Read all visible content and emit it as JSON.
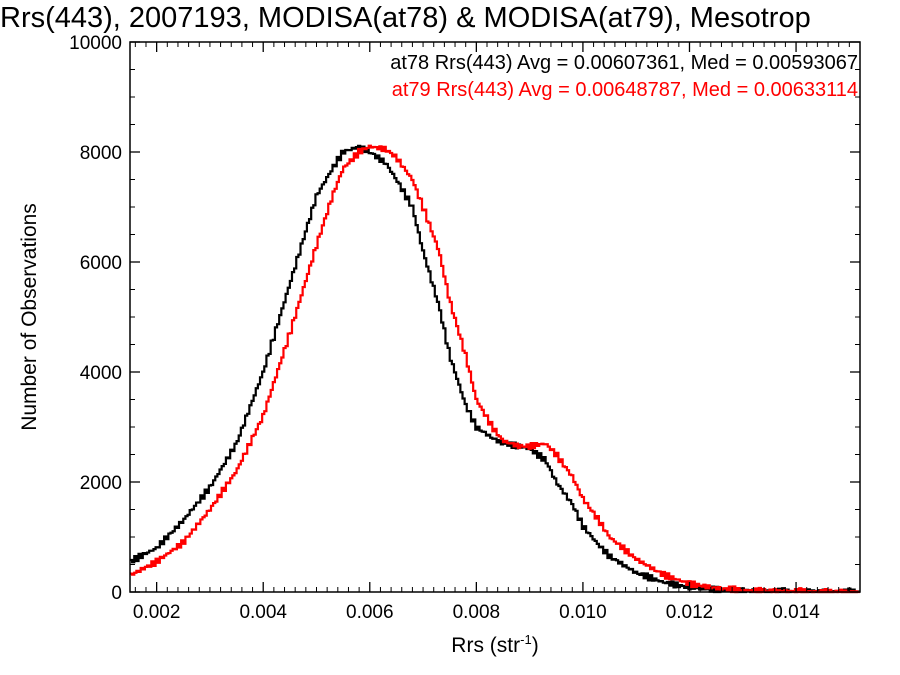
{
  "chart_data": {
    "type": "line",
    "title": "Rrs(443), 2007193, MODISA(at78) & MODISA(at79), Mesotrop",
    "xlabel": "Rrs (str",
    "xlabel_sup": "-1",
    "xlabel_end": ")",
    "ylabel": "Number of Observations",
    "xlim": [
      0.0015,
      0.0152
    ],
    "ylim": [
      0,
      10000
    ],
    "x_ticks": [
      0.002,
      0.004,
      0.006,
      0.008,
      0.01,
      0.012,
      0.014
    ],
    "x_tick_labels": [
      "0.002",
      "0.004",
      "0.006",
      "0.008",
      "0.010",
      "0.012",
      "0.014"
    ],
    "y_ticks": [
      0,
      2000,
      4000,
      6000,
      8000,
      10000
    ],
    "y_tick_labels": [
      "0",
      "2000",
      "4000",
      "6000",
      "8000",
      "10000"
    ],
    "annotations": [
      {
        "text": "at78 Rrs(443) Avg = 0.00607361, Med = 0.00593067",
        "color": "#000000"
      },
      {
        "text": "at79 Rrs(443) Avg = 0.00648787, Med = 0.00633114",
        "color": "#ff0000"
      }
    ],
    "series": [
      {
        "color": "#000000",
        "x": [
          0.0015,
          0.002,
          0.0025,
          0.003,
          0.0035,
          0.004,
          0.0045,
          0.005,
          0.0053,
          0.0055,
          0.0058,
          0.006,
          0.0063,
          0.0065,
          0.0068,
          0.007,
          0.0073,
          0.0075,
          0.0078,
          0.008,
          0.0083,
          0.0085,
          0.0088,
          0.009,
          0.0093,
          0.0095,
          0.0098,
          0.01,
          0.0103,
          0.0105,
          0.011,
          0.0115,
          0.012,
          0.0125,
          0.013,
          0.014,
          0.0152
        ],
        "y": [
          550,
          800,
          1300,
          1900,
          2700,
          4000,
          5600,
          7200,
          7700,
          8000,
          8100,
          8000,
          7800,
          7500,
          7000,
          6200,
          5200,
          4300,
          3400,
          3000,
          2800,
          2700,
          2650,
          2600,
          2400,
          2000,
          1600,
          1200,
          850,
          650,
          350,
          180,
          80,
          40,
          20,
          5,
          0
        ]
      },
      {
        "color": "#ff0000",
        "x": [
          0.0015,
          0.002,
          0.0025,
          0.003,
          0.0035,
          0.004,
          0.0045,
          0.005,
          0.0053,
          0.0055,
          0.0058,
          0.006,
          0.0063,
          0.0065,
          0.0068,
          0.007,
          0.0073,
          0.0075,
          0.0078,
          0.008,
          0.0083,
          0.0085,
          0.0088,
          0.009,
          0.0093,
          0.0095,
          0.0098,
          0.01,
          0.0103,
          0.0105,
          0.011,
          0.0115,
          0.012,
          0.0125,
          0.013,
          0.014,
          0.0152
        ],
        "y": [
          300,
          550,
          900,
          1500,
          2200,
          3200,
          4700,
          6300,
          7200,
          7700,
          8000,
          8100,
          8050,
          7900,
          7500,
          7000,
          6200,
          5300,
          4300,
          3500,
          3000,
          2750,
          2650,
          2650,
          2700,
          2500,
          2100,
          1700,
          1300,
          1000,
          600,
          320,
          150,
          70,
          30,
          10,
          0
        ]
      }
    ]
  }
}
